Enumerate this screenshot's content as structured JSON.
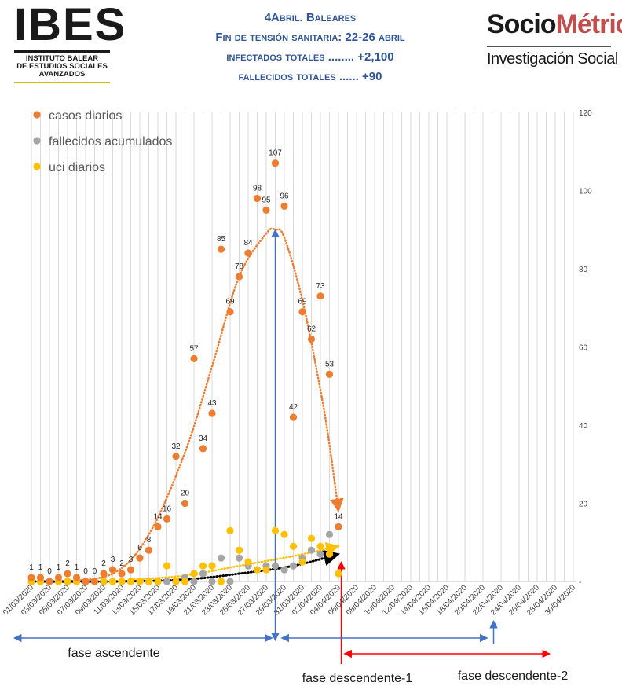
{
  "header": {
    "ibes_logo": {
      "letters": "IBES",
      "line1": "INSTITUTO BALEAR",
      "line2": "DE ESTUDIOS SOCIALES",
      "line3": "AVANZADOS"
    },
    "title_lines": [
      "4Abril. Baleares",
      "Fin de tensión sanitaria: 22-26 abril",
      "infectados totales ........ +2,100",
      "fallecidos totales ...... +90"
    ],
    "sociometrica_logo": {
      "part1": "Socio",
      "part2": "Métrica",
      "subtitle": "Investigación Social"
    }
  },
  "chart_data": {
    "type": "scatter",
    "x_dates": [
      "01/03/2020",
      "02/03/2020",
      "03/03/2020",
      "04/03/2020",
      "05/03/2020",
      "06/03/2020",
      "07/03/2020",
      "08/03/2020",
      "09/03/2020",
      "10/03/2020",
      "11/03/2020",
      "12/03/2020",
      "13/03/2020",
      "14/03/2020",
      "15/03/2020",
      "16/03/2020",
      "17/03/2020",
      "18/03/2020",
      "19/03/2020",
      "20/03/2020",
      "21/03/2020",
      "22/03/2020",
      "23/03/2020",
      "24/03/2020",
      "25/03/2020",
      "26/03/2020",
      "27/03/2020",
      "28/03/2020",
      "29/03/2020",
      "30/03/2020",
      "31/03/2020",
      "01/04/2020",
      "02/04/2020",
      "03/04/2020",
      "04/04/2020",
      "05/04/2020",
      "06/04/2020",
      "07/04/2020",
      "08/04/2020",
      "09/04/2020",
      "10/04/2020",
      "11/04/2020",
      "12/04/2020",
      "13/04/2020",
      "14/04/2020",
      "15/04/2020",
      "16/04/2020",
      "17/04/2020",
      "18/04/2020",
      "19/04/2020",
      "20/04/2020",
      "21/04/2020",
      "22/04/2020",
      "23/04/2020",
      "24/04/2020",
      "25/04/2020",
      "26/04/2020",
      "27/04/2020",
      "28/04/2020",
      "29/04/2020",
      "30/04/2020"
    ],
    "x_tick_labels": [
      "01/03/2020",
      "03/03/2020",
      "05/03/2020",
      "07/03/2020",
      "09/03/2020",
      "11/03/2020",
      "13/03/2020",
      "15/03/2020",
      "17/03/2020",
      "19/03/2020",
      "21/03/2020",
      "23/03/2020",
      "25/03/2020",
      "27/03/2020",
      "29/03/2020",
      "31/03/2020",
      "02/04/2020",
      "04/04/2020",
      "06/04/2020",
      "08/04/2020",
      "10/04/2020",
      "12/04/2020",
      "14/04/2020",
      "16/04/2020",
      "18/04/2020",
      "20/04/2020",
      "22/04/2020",
      "24/04/2020",
      "26/04/2020",
      "28/04/2020",
      "30/04/2020"
    ],
    "y_ticks": [
      "-",
      "20",
      "40",
      "60",
      "80",
      "100",
      "120"
    ],
    "ylim": [
      0,
      120
    ],
    "grid": "vertical",
    "legend_position": "top-left",
    "series": [
      {
        "name": "casos diarios",
        "color": "#ed7d31",
        "dates": [
          "01/03/2020",
          "02/03/2020",
          "03/03/2020",
          "04/03/2020",
          "05/03/2020",
          "06/03/2020",
          "07/03/2020",
          "08/03/2020",
          "09/03/2020",
          "10/03/2020",
          "11/03/2020",
          "12/03/2020",
          "13/03/2020",
          "14/03/2020",
          "15/03/2020",
          "16/03/2020",
          "17/03/2020",
          "18/03/2020",
          "19/03/2020",
          "20/03/2020",
          "21/03/2020",
          "22/03/2020",
          "23/03/2020",
          "24/03/2020",
          "25/03/2020",
          "26/03/2020",
          "27/03/2020",
          "28/03/2020",
          "29/03/2020",
          "30/03/2020",
          "31/03/2020",
          "01/04/2020",
          "02/04/2020",
          "03/04/2020",
          "04/04/2020"
        ],
        "values": [
          1,
          1,
          0,
          1,
          2,
          1,
          0,
          0,
          2,
          3,
          2,
          3,
          6,
          8,
          14,
          16,
          32,
          20,
          57,
          34,
          43,
          85,
          69,
          78,
          84,
          98,
          95,
          107,
          96,
          42,
          69,
          62,
          73,
          53,
          14
        ]
      },
      {
        "name": "fallecidos acumulados",
        "color": "#a5a5a5",
        "dates": [
          "01/03/2020",
          "02/03/2020",
          "03/03/2020",
          "04/03/2020",
          "05/03/2020",
          "06/03/2020",
          "07/03/2020",
          "08/03/2020",
          "09/03/2020",
          "10/03/2020",
          "11/03/2020",
          "12/03/2020",
          "13/03/2020",
          "14/03/2020",
          "15/03/2020",
          "16/03/2020",
          "17/03/2020",
          "18/03/2020",
          "19/03/2020",
          "20/03/2020",
          "21/03/2020",
          "22/03/2020",
          "23/03/2020",
          "24/03/2020",
          "25/03/2020",
          "26/03/2020",
          "27/03/2020",
          "28/03/2020",
          "29/03/2020",
          "30/03/2020",
          "31/03/2020",
          "01/04/2020",
          "02/04/2020",
          "03/04/2020"
        ],
        "values": [
          0,
          0,
          0,
          0,
          0,
          0,
          0,
          0,
          0,
          0,
          0,
          0,
          0,
          0,
          0,
          0,
          0,
          1,
          0,
          2,
          0,
          6,
          0,
          6,
          4,
          3,
          4,
          4,
          3,
          4,
          6,
          8,
          7,
          12
        ]
      },
      {
        "name": "uci diarios",
        "color": "#ffc000",
        "dates": [
          "01/03/2020",
          "02/03/2020",
          "03/03/2020",
          "04/03/2020",
          "05/03/2020",
          "06/03/2020",
          "07/03/2020",
          "08/03/2020",
          "09/03/2020",
          "10/03/2020",
          "11/03/2020",
          "12/03/2020",
          "13/03/2020",
          "14/03/2020",
          "15/03/2020",
          "16/03/2020",
          "17/03/2020",
          "18/03/2020",
          "19/03/2020",
          "20/03/2020",
          "21/03/2020",
          "22/03/2020",
          "23/03/2020",
          "24/03/2020",
          "25/03/2020",
          "26/03/2020",
          "27/03/2020",
          "28/03/2020",
          "29/03/2020",
          "30/03/2020",
          "31/03/2020",
          "01/04/2020",
          "02/04/2020",
          "03/04/2020",
          "04/04/2020"
        ],
        "values": [
          0,
          0,
          0,
          0,
          0,
          0,
          0,
          0,
          0,
          0,
          0,
          0,
          0,
          0,
          0,
          4,
          0,
          0,
          2,
          4,
          4,
          0,
          13,
          8,
          5,
          3,
          3,
          13,
          12,
          9,
          5,
          11,
          9,
          7,
          2
        ]
      }
    ],
    "data_labels": {
      "series": "casos diarios",
      "dates": [
        "01/03/2020",
        "02/03/2020",
        "03/03/2020",
        "04/03/2020",
        "05/03/2020",
        "06/03/2020",
        "07/03/2020",
        "08/03/2020",
        "09/03/2020",
        "10/03/2020",
        "11/03/2020",
        "12/03/2020",
        "13/03/2020",
        "14/03/2020",
        "15/03/2020",
        "16/03/2020",
        "17/03/2020",
        "18/03/2020",
        "19/03/2020",
        "20/03/2020",
        "21/03/2020",
        "22/03/2020",
        "23/03/2020",
        "24/03/2020",
        "25/03/2020",
        "26/03/2020",
        "27/03/2020",
        "28/03/2020",
        "29/03/2020",
        "30/03/2020",
        "31/03/2020",
        "01/04/2020",
        "02/04/2020",
        "03/04/2020",
        "04/04/2020"
      ],
      "values": [
        1,
        1,
        0,
        1,
        2,
        1,
        0,
        0,
        2,
        3,
        2,
        3,
        6,
        8,
        14,
        16,
        32,
        20,
        57,
        34,
        43,
        85,
        69,
        78,
        84,
        98,
        95,
        107,
        96,
        42,
        69,
        62,
        73,
        53,
        14
      ]
    },
    "trendlines": [
      {
        "series": "casos diarios",
        "color": "#ed7d31",
        "style": "dotted",
        "dates": [
          "04/03/2020",
          "10/03/2020",
          "14/03/2020",
          "18/03/2020",
          "21/03/2020",
          "24/03/2020",
          "27/03/2020",
          "28/03/2020",
          "29/03/2020",
          "31/03/2020",
          "02/04/2020",
          "03/04/2020",
          "04/04/2020"
        ],
        "values": [
          0,
          2,
          12,
          33,
          55,
          78,
          89,
          90,
          88,
          72,
          49,
          35,
          18
        ]
      },
      {
        "series": "fallecidos acumulados",
        "color": "#000000",
        "style": "dotted",
        "dates": [
          "01/03/2020",
          "10/03/2020",
          "18/03/2020",
          "24/03/2020",
          "30/03/2020",
          "04/04/2020"
        ],
        "values": [
          0,
          0,
          0.5,
          2,
          4,
          7
        ]
      },
      {
        "series": "uci diarios",
        "color": "#ffc000",
        "style": "dotted",
        "dates": [
          "12/03/2020",
          "18/03/2020",
          "24/03/2020",
          "30/03/2020",
          "04/04/2020"
        ],
        "values": [
          0.5,
          1.5,
          4,
          6.5,
          9
        ]
      }
    ],
    "annotations": {
      "phases": [
        {
          "label": "fase ascendente",
          "start": "01/03/2020",
          "end": "28/03/2020",
          "color": "#4472c4"
        },
        {
          "label": "fase descendente-1",
          "start": "28/03/2020",
          "end": "21/04/2020",
          "color": "#4472c4"
        },
        {
          "label": "fase descendente-2",
          "start": "05/04/2020",
          "end": "30/04/2020",
          "color": "#ff0000"
        }
      ],
      "markers": [
        {
          "date": "28/03/2020",
          "color": "#4472c4"
        },
        {
          "date": "05/04/2020",
          "color": "#ff0000"
        },
        {
          "date": "21/04/2020",
          "color": "#4472c4"
        }
      ]
    }
  }
}
